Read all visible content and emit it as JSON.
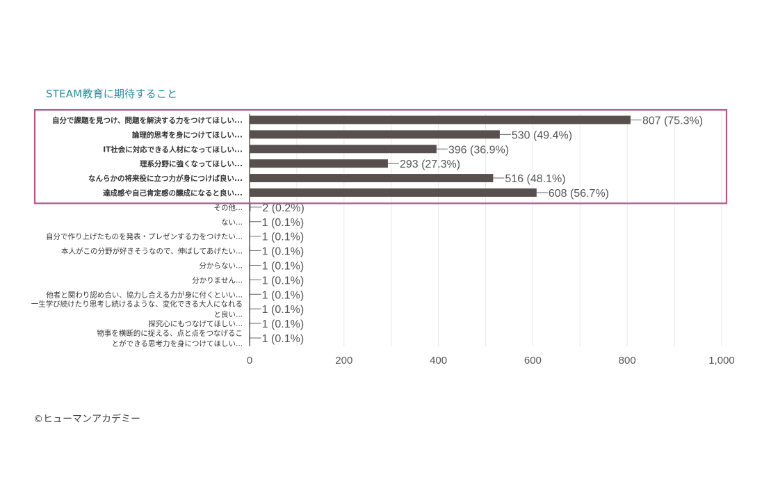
{
  "chart_data": {
    "type": "bar",
    "orientation": "horizontal",
    "title": "STEAM教育に期待すること",
    "categories": [
      "自分で課題を見つけ、問題を解決する力をつけてほしい...",
      "論理的思考を身につけてほしい...",
      "IT社会に対応できる人材になってほしい...",
      "理系分野に強くなってほしい...",
      "なんらかの将来役に立つ力が身につけば良い...",
      "達成感や自己肯定感の醸成になると良い...",
      "その他...",
      "ない...",
      "自分で作り上げたものを発表・プレゼンする力をつけたい...",
      "本人がこの分野が好きそうなので、伸ばしてあげたい...",
      "分からない...",
      "分かりません...",
      "他者と関わり認め合い、協力し合える力が身に付くといい...",
      "一生学び続けたり思考し続けるような、変化できる大人になれると良い...",
      "探究心にもつなげてほしい...",
      "物事を横断的に捉える、点と点をつなげることができる思考力を身につけてほしい..."
    ],
    "category_lines": [
      [
        "自分で課題を見つけ、問題を解決する力をつけてほしい..."
      ],
      [
        "論理的思考を身につけてほしい..."
      ],
      [
        "IT社会に対応できる人材になってほしい..."
      ],
      [
        "理系分野に強くなってほしい..."
      ],
      [
        "なんらかの将来役に立つ力が身につけば良い..."
      ],
      [
        "達成感や自己肯定感の醸成になると良い..."
      ],
      [
        "その他..."
      ],
      [
        "ない..."
      ],
      [
        "自分で作り上げたものを発表・プレゼンする力をつけたい..."
      ],
      [
        "本人がこの分野が好きそうなので、伸ばしてあげたい..."
      ],
      [
        "分からない..."
      ],
      [
        "分かりません..."
      ],
      [
        "他者と関わり認め合い、協力し合える力が身に付くといい..."
      ],
      [
        "一生学び続けたり思考し続けるような、変化できる大人になれる",
        "と良い..."
      ],
      [
        "探究心にもつなげてほしい..."
      ],
      [
        "物事を横断的に捉える、点と点をつなげるこ",
        "とができる思考力を身につけてほしい..."
      ]
    ],
    "values": [
      807,
      530,
      396,
      293,
      516,
      608,
      2,
      1,
      1,
      1,
      1,
      1,
      1,
      1,
      1,
      1
    ],
    "value_labels": [
      "807 (75.3%)",
      "530 (49.4%)",
      "396 (36.9%)",
      "293 (27.3%)",
      "516 (48.1%)",
      "608 (56.7%)",
      "2 (0.2%)",
      "1 (0.1%)",
      "1 (0.1%)",
      "1 (0.1%)",
      "1 (0.1%)",
      "1 (0.1%)",
      "1 (0.1%)",
      "1 (0.1%)",
      "1 (0.1%)",
      "1 (0.1%)"
    ],
    "bold_categories": [
      0,
      1,
      2,
      3,
      4,
      5
    ],
    "highlight_group": [
      0,
      5
    ],
    "xlim": [
      0,
      1000
    ],
    "xticks": [
      0,
      200,
      400,
      600,
      800,
      1000
    ],
    "xtick_labels": [
      "0",
      "200",
      "400",
      "600",
      "800",
      "1,000"
    ],
    "grid": true,
    "legend": "none",
    "colors": {
      "bar": "#584f4f",
      "highlight_border": "#b5568a",
      "title": "#2a8a9e",
      "grid": "#e8e8e8",
      "axis": "#333333",
      "label": "#333333",
      "value_label": "#555555"
    }
  },
  "footer": {
    "copyright": "©ヒューマンアカデミー"
  }
}
